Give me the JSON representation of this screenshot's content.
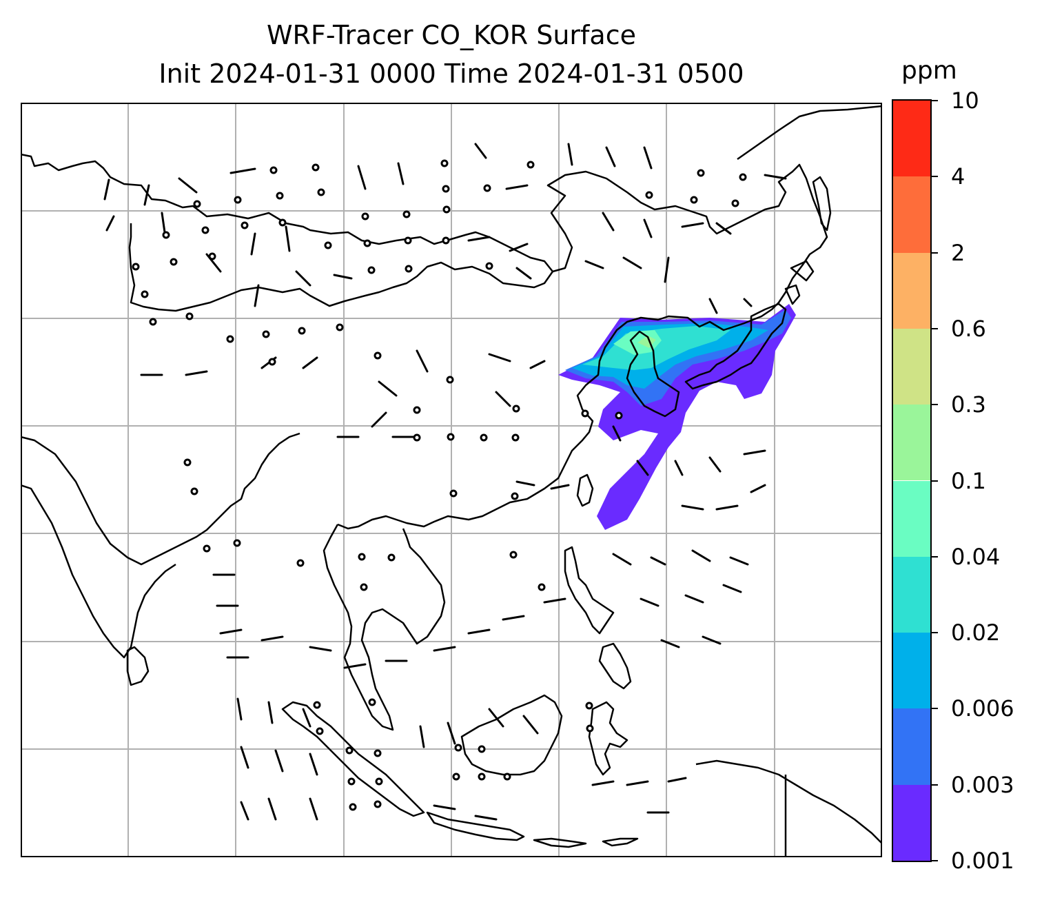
{
  "title": {
    "line1": "WRF-Tracer CO_KOR Surface",
    "line2": "Init 2024-01-31 0000 Time 2024-01-31 0500"
  },
  "colorbar": {
    "unit": "ppm",
    "levels": [
      "0.001",
      "0.003",
      "0.006",
      "0.02",
      "0.04",
      "0.1",
      "0.3",
      "0.6",
      "2",
      "4",
      "10"
    ],
    "colors": [
      "#6a2bff",
      "#3273f5",
      "#00b0ea",
      "#2fe0d2",
      "#6afdc2",
      "#9af59a",
      "#cfe386",
      "#fdb164",
      "#fe6d3a",
      "#fe2a16"
    ]
  },
  "map": {
    "gridlines": true,
    "coastline_color": "#000000",
    "grid_color": "#b0b0b0",
    "tracer_plume_region": "Korea / northeast China / Sea of Japan",
    "wind_barbs": true,
    "calm_marker": "circle"
  }
}
